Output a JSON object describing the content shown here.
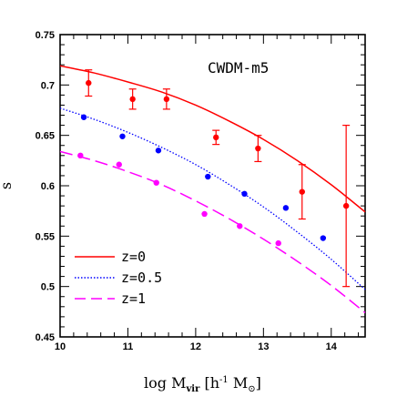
{
  "chart_data": {
    "type": "line",
    "annotation": "CWDM-m5",
    "xlabel": {
      "main": "log M",
      "sub": "vir",
      "units_open": " [h",
      "sup": "-1",
      "units_mid": " M",
      "units_close": "]"
    },
    "ylabel": "s",
    "xlim": [
      10,
      14.5
    ],
    "ylim": [
      0.45,
      0.75
    ],
    "x_ticks": [
      "10",
      "11",
      "12",
      "13",
      "14"
    ],
    "y_ticks": [
      "0.45",
      "0.5",
      "0.55",
      "0.6",
      "0.65",
      "0.7",
      "0.75"
    ],
    "legend_position": "bottom-left",
    "series": [
      {
        "name": "z=0",
        "color": "#ff0000",
        "line_style": "solid",
        "curve": {
          "x": [
            10.0,
            10.5,
            11.0,
            11.5,
            12.0,
            12.5,
            13.0,
            13.5,
            14.0,
            14.5
          ],
          "y": [
            0.719,
            0.712,
            0.703,
            0.693,
            0.68,
            0.664,
            0.646,
            0.625,
            0.601,
            0.574
          ]
        },
        "points": [
          {
            "x": 10.42,
            "y": 0.702,
            "yerr": 0.013
          },
          {
            "x": 11.07,
            "y": 0.686,
            "yerr": 0.01
          },
          {
            "x": 11.57,
            "y": 0.686,
            "yerr": 0.01
          },
          {
            "x": 12.3,
            "y": 0.648,
            "yerr": 0.007
          },
          {
            "x": 12.92,
            "y": 0.637,
            "yerr": 0.013
          },
          {
            "x": 13.57,
            "y": 0.594,
            "yerr": 0.027
          },
          {
            "x": 14.22,
            "y": 0.58,
            "yerr": 0.08
          }
        ]
      },
      {
        "name": "z=0.5",
        "color": "#0000ff",
        "line_style": "dotted",
        "curve": {
          "x": [
            10.0,
            10.5,
            11.0,
            11.5,
            12.0,
            12.5,
            13.0,
            13.5,
            14.0,
            14.5
          ],
          "y": [
            0.677,
            0.666,
            0.653,
            0.638,
            0.621,
            0.601,
            0.579,
            0.554,
            0.527,
            0.497
          ]
        },
        "points": [
          {
            "x": 10.35,
            "y": 0.668
          },
          {
            "x": 10.92,
            "y": 0.649
          },
          {
            "x": 11.45,
            "y": 0.635
          },
          {
            "x": 12.18,
            "y": 0.609
          },
          {
            "x": 12.72,
            "y": 0.592
          },
          {
            "x": 13.33,
            "y": 0.578
          },
          {
            "x": 13.88,
            "y": 0.548
          }
        ]
      },
      {
        "name": "z=1",
        "color": "#ff00ff",
        "line_style": "dashed",
        "curve": {
          "x": [
            10.0,
            10.5,
            11.0,
            11.5,
            12.0,
            12.5,
            13.0,
            13.5,
            14.0,
            14.5
          ],
          "y": [
            0.634,
            0.625,
            0.614,
            0.601,
            0.585,
            0.567,
            0.547,
            0.525,
            0.501,
            0.474
          ]
        },
        "points": [
          {
            "x": 10.3,
            "y": 0.63
          },
          {
            "x": 10.87,
            "y": 0.621
          },
          {
            "x": 11.42,
            "y": 0.603
          },
          {
            "x": 12.13,
            "y": 0.572
          },
          {
            "x": 12.65,
            "y": 0.56
          },
          {
            "x": 13.22,
            "y": 0.543
          }
        ]
      }
    ]
  }
}
